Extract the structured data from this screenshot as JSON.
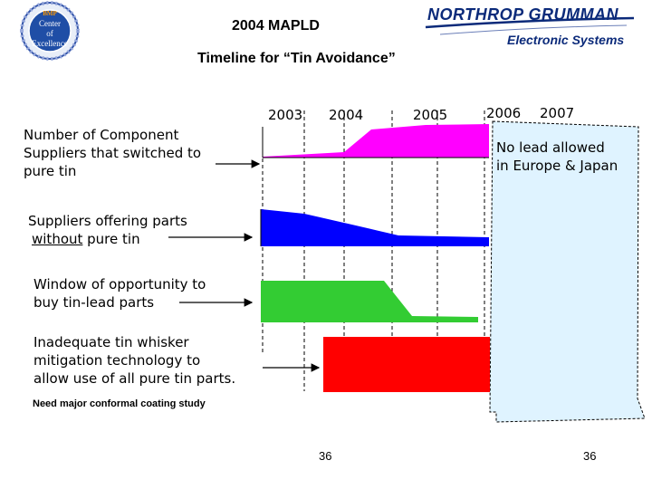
{
  "header": {
    "title": "2004 MAPLD",
    "subtitle": "Timeline for “Tin Avoidance”"
  },
  "seal": {
    "top_text": "BMP",
    "lines": [
      "Center",
      "of",
      "Excellence"
    ]
  },
  "company": {
    "name": "NORTHROP GRUMMAN",
    "division": "Electronic Systems"
  },
  "years": [
    "2003",
    "2004",
    "2005",
    "2006",
    "2007"
  ],
  "rows": [
    {
      "label_lines": [
        "Number of Component",
        "Suppliers that switched to",
        "pure tin"
      ],
      "color": "#ff00ff"
    },
    {
      "label_lines": [
        "Suppliers offering parts",
        "without pure tin"
      ],
      "underline_word": "without",
      "color": "#0000ff"
    },
    {
      "label_lines": [
        "Window of opportunity to",
        "buy tin-lead parts"
      ],
      "color": "#33cc33"
    },
    {
      "label_lines": [
        "Inadequate tin whisker",
        "mitigation technology to",
        "allow use of all pure tin parts."
      ],
      "color": "#ff0000"
    }
  ],
  "callout": {
    "lines": [
      "No lead allowed",
      "in Europe & Japan"
    ],
    "fill": "#dff3ff"
  },
  "note": "Need major conformal coating study",
  "page_numbers": [
    "36",
    "36"
  ]
}
